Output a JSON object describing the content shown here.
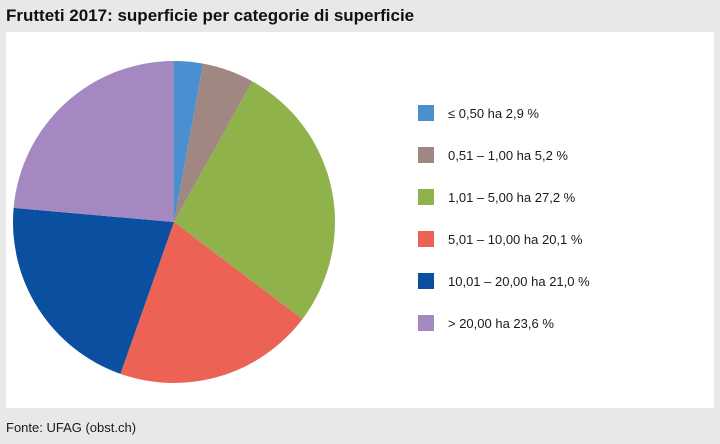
{
  "chart_data": {
    "type": "pie",
    "title": "Frutteti 2017: superficie per categorie di superficie",
    "categories": [
      "≤ 0,50 ha",
      "0,51 – 1,00 ha",
      "1,01 – 5,00 ha",
      "5,01 – 10,00 ha",
      "10,01 – 20,00 ha",
      "> 20,00 ha"
    ],
    "values": [
      2.9,
      5.2,
      27.2,
      20.1,
      21.0,
      23.6
    ],
    "unit": "%",
    "colors": [
      "#4a90d0",
      "#a08782",
      "#8fb24a",
      "#ec6355",
      "#0b4fa0",
      "#a488c1"
    ],
    "legend": {
      "position": "right",
      "items": [
        {
          "label": "≤ 0,50 ha 2,9 %"
        },
        {
          "label": "0,51 – 1,00 ha 5,2 %"
        },
        {
          "label": "1,01 – 5,00 ha 27,2 %"
        },
        {
          "label": "5,01 – 10,00 ha 20,1 %"
        },
        {
          "label": "10,01 – 20,00 ha 21,0 %"
        },
        {
          "label": "> 20,00 ha 23,6 %"
        }
      ]
    },
    "start_angle": "12 o'clock",
    "direction": "clockwise"
  },
  "source": "Fonte: UFAG (obst.ch)"
}
